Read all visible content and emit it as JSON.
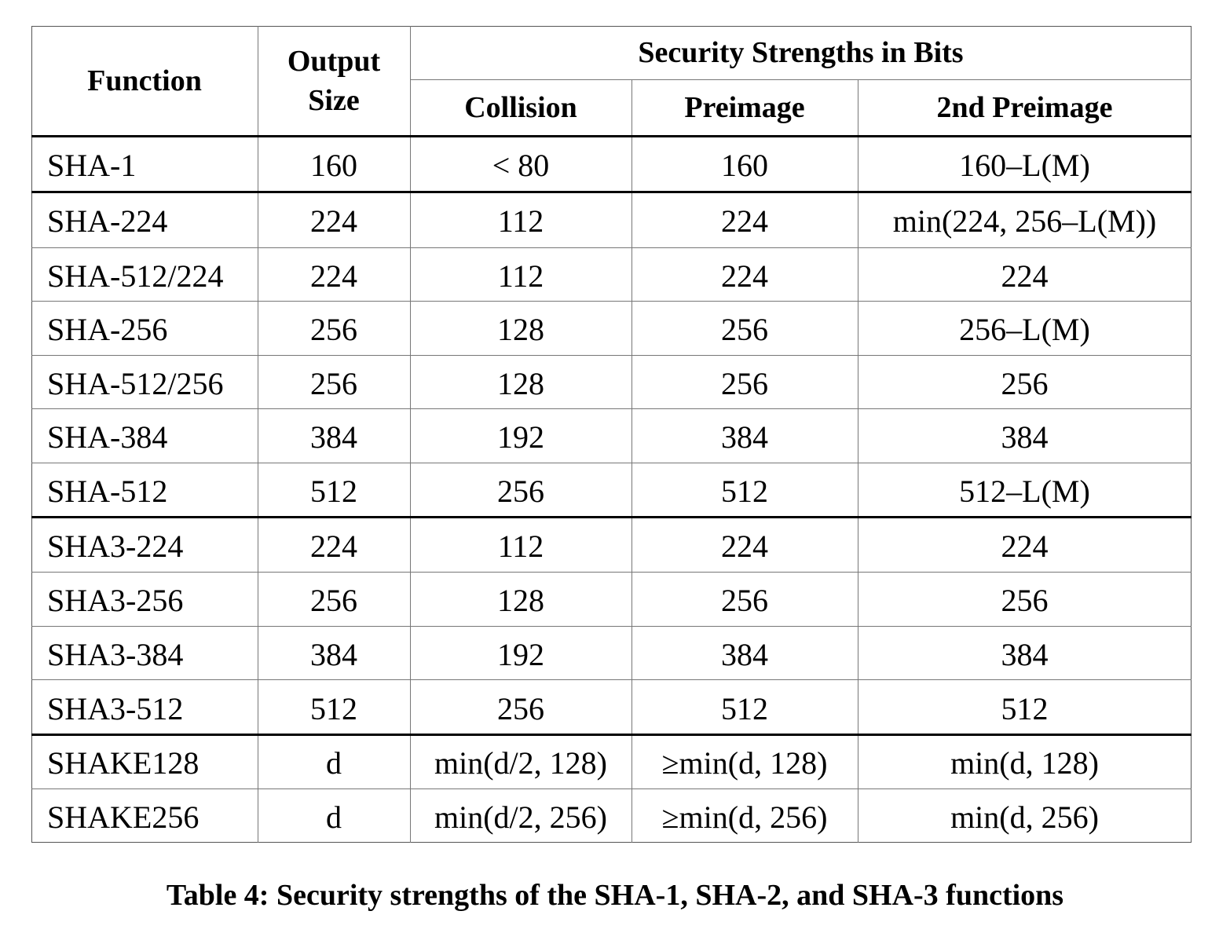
{
  "table": {
    "headers": {
      "function": "Function",
      "output_size_line1": "Output",
      "output_size_line2": "Size",
      "group": "Security Strengths in Bits",
      "collision": "Collision",
      "preimage": "Preimage",
      "second_preimage": "2nd Preimage"
    },
    "rows": [
      [
        "SHA-1",
        "160",
        "< 80",
        "160",
        "160–L(M)"
      ],
      [
        "SHA-224",
        "224",
        "112",
        "224",
        "min(224, 256–L(M))"
      ],
      [
        "SHA-512/224",
        "224",
        "112",
        "224",
        "224"
      ],
      [
        "SHA-256",
        "256",
        "128",
        "256",
        "256–L(M)"
      ],
      [
        "SHA-512/256",
        "256",
        "128",
        "256",
        "256"
      ],
      [
        "SHA-384",
        "384",
        "192",
        "384",
        "384"
      ],
      [
        "SHA-512",
        "512",
        "256",
        "512",
        "512–L(M)"
      ],
      [
        "SHA3-224",
        "224",
        "112",
        "224",
        "224"
      ],
      [
        "SHA3-256",
        "256",
        "128",
        "256",
        "256"
      ],
      [
        "SHA3-384",
        "384",
        "192",
        "384",
        "384"
      ],
      [
        "SHA3-512",
        "512",
        "256",
        "512",
        "512"
      ],
      [
        "SHAKE128",
        "d",
        "min(d/2, 128)",
        "≥min(d, 128)",
        "min(d, 128)"
      ],
      [
        "SHAKE256",
        "d",
        "min(d/2, 256)",
        "≥min(d, 256)",
        "min(d, 256)"
      ]
    ]
  },
  "caption": "Table 4:  Security strengths of the SHA-1, SHA-2, and SHA-3 functions"
}
